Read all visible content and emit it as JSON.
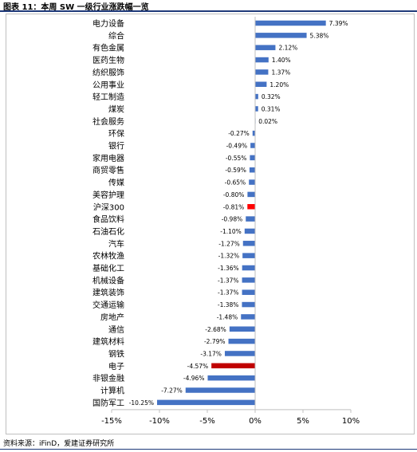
{
  "header": {
    "title": "图表 11：本周 SW 一级行业涨跌幅一览"
  },
  "footer": {
    "source": "资料来源：iFinD，爱建证券研究所"
  },
  "chart_data": {
    "type": "bar",
    "orientation": "horizontal",
    "categories": [
      "电力设备",
      "综合",
      "有色金属",
      "医药生物",
      "纺织服饰",
      "公用事业",
      "轻工制造",
      "煤炭",
      "社会服务",
      "环保",
      "银行",
      "家用电器",
      "商贸零售",
      "传媒",
      "美容护理",
      "沪深300",
      "食品饮料",
      "石油石化",
      "汽车",
      "农林牧渔",
      "基础化工",
      "机械设备",
      "建筑装饰",
      "交通运输",
      "房地产",
      "通信",
      "建筑材料",
      "钢铁",
      "电子",
      "非银金融",
      "计算机",
      "国防军工"
    ],
    "values": [
      7.39,
      5.38,
      2.12,
      1.4,
      1.37,
      1.2,
      0.32,
      0.31,
      0.02,
      -0.27,
      -0.49,
      -0.55,
      -0.59,
      -0.65,
      -0.8,
      -0.81,
      -0.98,
      -1.1,
      -1.27,
      -1.32,
      -1.36,
      -1.37,
      -1.37,
      -1.38,
      -1.48,
      -2.68,
      -2.79,
      -3.17,
      -4.57,
      -4.96,
      -7.27,
      -10.25
    ],
    "value_labels": [
      "7.39%",
      "5.38%",
      "2.12%",
      "1.40%",
      "1.37%",
      "1.20%",
      "0.32%",
      "0.31%",
      "0.02%",
      "-0.27%",
      "-0.49%",
      "-0.55%",
      "-0.59%",
      "-0.65%",
      "-0.80%",
      "-0.81%",
      "-0.98%",
      "-1.10%",
      "-1.27%",
      "-1.32%",
      "-1.36%",
      "-1.37%",
      "-1.37%",
      "-1.38%",
      "-1.48%",
      "-2.68%",
      "-2.79%",
      "-3.17%",
      "-4.57%",
      "-4.96%",
      "-7.27%",
      "-10.25%"
    ],
    "highlight": {
      "沪深300": "#ff0000",
      "电子": "#c00000"
    },
    "colors": {
      "default": "#4472c4",
      "benchmark": "#ff0000",
      "electronics": "#c00000"
    },
    "xlim": [
      -15,
      10
    ],
    "xticks": [
      -15,
      -10,
      -5,
      0,
      5,
      10
    ],
    "xtick_labels": [
      "-15%",
      "-10%",
      "-5%",
      "0%",
      "5%",
      "10%"
    ],
    "grid": false,
    "legend": "none"
  }
}
